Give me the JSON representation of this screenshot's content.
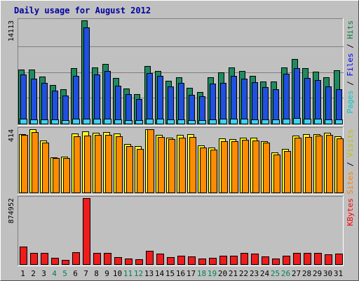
{
  "chart_data": {
    "type": "bar",
    "title": "Daily usage for August 2012",
    "categories": [
      "1",
      "2",
      "3",
      "4",
      "5",
      "6",
      "7",
      "8",
      "9",
      "10",
      "11",
      "12",
      "13",
      "14",
      "15",
      "16",
      "17",
      "18",
      "19",
      "20",
      "21",
      "22",
      "23",
      "24",
      "25",
      "26",
      "27",
      "28",
      "29",
      "30",
      "31"
    ],
    "weekend_days": [
      "4",
      "5",
      "11",
      "12",
      "18",
      "19",
      "25",
      "26"
    ],
    "panels": [
      {
        "id": "hits",
        "max_label": "14113",
        "ymax": 14113,
        "legend": [
          "Pages",
          "Files",
          "Hits"
        ],
        "series": [
          {
            "name": "Hits",
            "color": "#1f8b5e",
            "values": [
              7400,
              7400,
              6400,
              5300,
              4700,
              7600,
              14113,
              7700,
              8200,
              6200,
              4800,
              4000,
              7900,
              7200,
              5900,
              6300,
              4900,
              4300,
              6300,
              7000,
              7700,
              7200,
              6500,
              5800,
              5800,
              7700,
              8800,
              7600,
              7100,
              6300,
              7300
            ]
          },
          {
            "name": "Files",
            "color": "#2050e0",
            "values": [
              6700,
              6100,
              5600,
              4500,
              3800,
              6500,
              13200,
              6700,
              7200,
              5200,
              4000,
              3400,
              6900,
              6500,
              5100,
              5600,
              3900,
              3700,
              5500,
              5600,
              6500,
              6100,
              5700,
              5000,
              4700,
              6800,
              7600,
              6200,
              6000,
              5100,
              4700
            ]
          },
          {
            "name": "Pages",
            "color": "#40d0f0",
            "values": [
              650,
              620,
              600,
              580,
              500,
              650,
              700,
              700,
              720,
              600,
              500,
              480,
              700,
              650,
              600,
              620,
              500,
              480,
              600,
              650,
              700,
              650,
              620,
              600,
              550,
              700,
              750,
              650,
              650,
              600,
              620
            ]
          }
        ]
      },
      {
        "id": "visits",
        "max_label": "414",
        "ymax": 414,
        "legend": [
          "Sites",
          "Visits"
        ],
        "series": [
          {
            "name": "Visits",
            "color": "#ffff20",
            "values": [
              384,
              414,
              340,
              232,
              235,
              385,
              400,
              390,
              394,
              387,
              318,
              305,
              414,
              375,
              360,
              375,
              380,
              307,
              293,
              353,
              350,
              360,
              360,
              337,
              261,
              285,
              373,
              380,
              380,
              392,
              368
            ]
          },
          {
            "name": "Sites",
            "color": "#ff8c00",
            "values": [
              378,
              397,
              328,
              227,
              225,
              368,
              372,
              376,
              378,
              370,
              302,
              285,
              414,
              364,
              348,
              360,
              363,
              295,
              280,
              338,
              335,
              343,
              340,
              327,
              250,
              272,
              358,
              364,
              371,
              375,
              352
            ]
          }
        ]
      },
      {
        "id": "kbytes",
        "max_label": "874952",
        "ymax": 874952,
        "legend": [
          "KBytes"
        ],
        "series": [
          {
            "name": "KBytes",
            "color": "#ee1c1c",
            "values": [
              230000,
              150000,
              148000,
              80000,
              60000,
              155000,
              874952,
              150000,
              148000,
              95000,
              70000,
              65000,
              180000,
              135000,
              95000,
              115000,
              100000,
              70000,
              85000,
              110000,
              115000,
              145000,
              140000,
              100000,
              75000,
              110000,
              150000,
              150000,
              150000,
              130000,
              140000
            ]
          }
        ]
      }
    ]
  }
}
